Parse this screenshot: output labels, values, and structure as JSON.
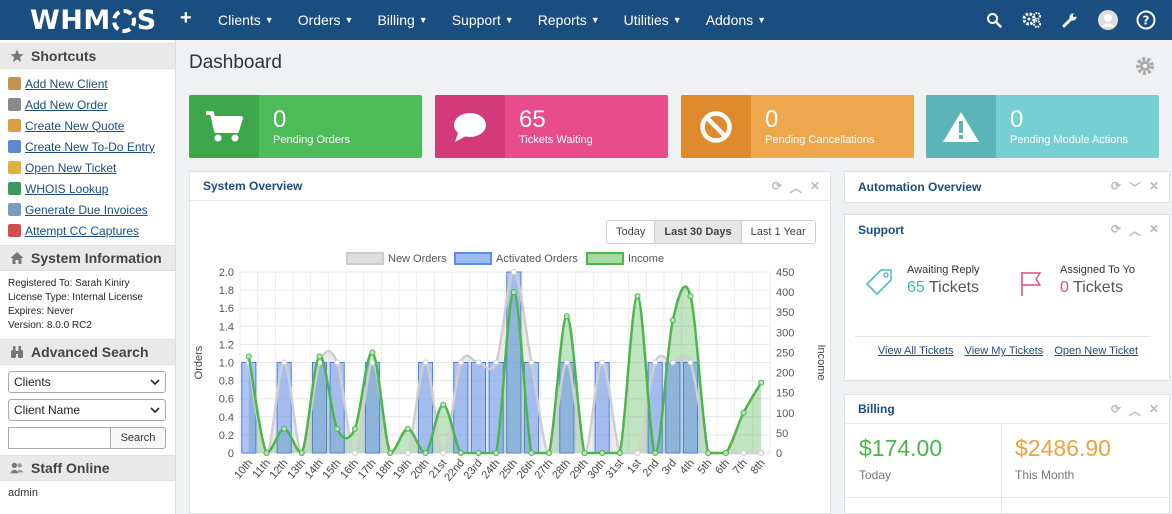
{
  "nav": {
    "logo": "WHMCS",
    "plus": "+",
    "items": [
      "Clients",
      "Orders",
      "Billing",
      "Support",
      "Reports",
      "Utilities",
      "Addons"
    ]
  },
  "sidebar": {
    "shortcuts_title": "Shortcuts",
    "shortcuts": [
      {
        "label": "Add New Client",
        "color": "#c89050"
      },
      {
        "label": "Add New Order",
        "color": "#8a8a8a"
      },
      {
        "label": "Create New Quote",
        "color": "#d8a040"
      },
      {
        "label": "Create New To-Do Entry",
        "color": "#5a8ad0"
      },
      {
        "label": "Open New Ticket",
        "color": "#e0b040"
      },
      {
        "label": "WHOIS Lookup",
        "color": "#3a9a5a"
      },
      {
        "label": "Generate Due Invoices",
        "color": "#7a9ac0"
      },
      {
        "label": "Attempt CC Captures",
        "color": "#d05050"
      }
    ],
    "sysinfo_title": "System Information",
    "sysinfo": [
      "Registered To: Sarah Kiniry",
      "License Type: Internal License",
      "Expires: Never",
      "Version: 8.0.0 RC2"
    ],
    "adv_search_title": "Advanced Search",
    "search_type": "Clients",
    "search_field": "Client Name",
    "search_button": "Search",
    "staff_title": "Staff Online",
    "staff_name": "admin"
  },
  "main": {
    "title": "Dashboard",
    "stats": [
      {
        "value": "0",
        "label": "Pending Orders",
        "color": "#4cbb58",
        "icon_color": "#3ea64a",
        "icon": "cart-icon"
      },
      {
        "value": "65",
        "label": "Tickets Waiting",
        "color": "#e84c8a",
        "icon_color": "#d4397a",
        "icon": "comment-icon"
      },
      {
        "value": "0",
        "label": "Pending Cancellations",
        "color": "#eea74d",
        "icon_color": "#e08a2e",
        "icon": "ban-icon"
      },
      {
        "value": "0",
        "label": "Pending Module Actions",
        "color": "#76d0d3",
        "icon_color": "#5bb4b7",
        "icon": "warning-icon"
      }
    ]
  },
  "system_overview": {
    "title": "System Overview",
    "ranges": [
      "Today",
      "Last 30 Days",
      "Last 1 Year"
    ],
    "active_range": "Last 30 Days"
  },
  "automation": {
    "title": "Automation Overview"
  },
  "support": {
    "title": "Support",
    "awaiting_label": "Awaiting Reply",
    "awaiting_count": "65",
    "assigned_label": "Assigned To Yo",
    "assigned_count": "0",
    "tickets_word": "Tickets",
    "links": [
      "View All Tickets",
      "View My Tickets",
      "Open New Ticket"
    ]
  },
  "billing": {
    "title": "Billing",
    "today_amount": "$174.00",
    "today_label": "Today",
    "month_amount": "$2486.90",
    "month_label": "This Month"
  },
  "chart_data": {
    "type": "bar",
    "categories": [
      "10th",
      "11th",
      "12th",
      "13th",
      "14th",
      "15th",
      "16th",
      "17th",
      "18th",
      "19th",
      "20th",
      "21st",
      "22nd",
      "23rd",
      "24th",
      "25th",
      "26th",
      "27th",
      "28th",
      "29th",
      "30th",
      "31st",
      "1st",
      "2nd",
      "3rd",
      "4th",
      "5th",
      "6th",
      "7th",
      "8th"
    ],
    "series": [
      {
        "name": "New Orders",
        "kind": "area",
        "axis": "left",
        "color": "#cccccc",
        "values": [
          1,
          0,
          1,
          0,
          1,
          1,
          0,
          1,
          0,
          0,
          1,
          0,
          1,
          1,
          1,
          2,
          1,
          0,
          1,
          0,
          1,
          0,
          0,
          1,
          1,
          1,
          0,
          0,
          0,
          0
        ]
      },
      {
        "name": "Activated Orders",
        "kind": "bar",
        "axis": "left",
        "color": "#5b8def",
        "values": [
          1,
          0,
          1,
          0,
          1,
          1,
          0,
          1,
          0,
          0,
          1,
          0,
          1,
          1,
          1,
          2,
          1,
          0,
          1,
          0,
          1,
          0,
          0,
          1,
          1,
          1,
          0,
          0,
          0,
          0
        ]
      },
      {
        "name": "Income",
        "kind": "line",
        "axis": "right",
        "color": "#4cb54c",
        "values": [
          240,
          0,
          60,
          0,
          240,
          60,
          60,
          250,
          0,
          60,
          0,
          120,
          0,
          0,
          0,
          400,
          0,
          0,
          340,
          0,
          0,
          0,
          390,
          0,
          330,
          390,
          0,
          0,
          100,
          175
        ]
      }
    ],
    "left_axis": {
      "label": "Orders",
      "ylim": [
        0,
        2
      ],
      "ticks": [
        "0",
        "0.2",
        "0.4",
        "0.6",
        "0.8",
        "1.0",
        "1.2",
        "1.4",
        "1.6",
        "1.8",
        "2.0"
      ]
    },
    "right_axis": {
      "label": "Income",
      "ylim": [
        0,
        450
      ],
      "ticks": [
        "0",
        "50",
        "100",
        "150",
        "200",
        "250",
        "300",
        "350",
        "400",
        "450"
      ]
    },
    "grid": true,
    "legend": "top-center"
  }
}
